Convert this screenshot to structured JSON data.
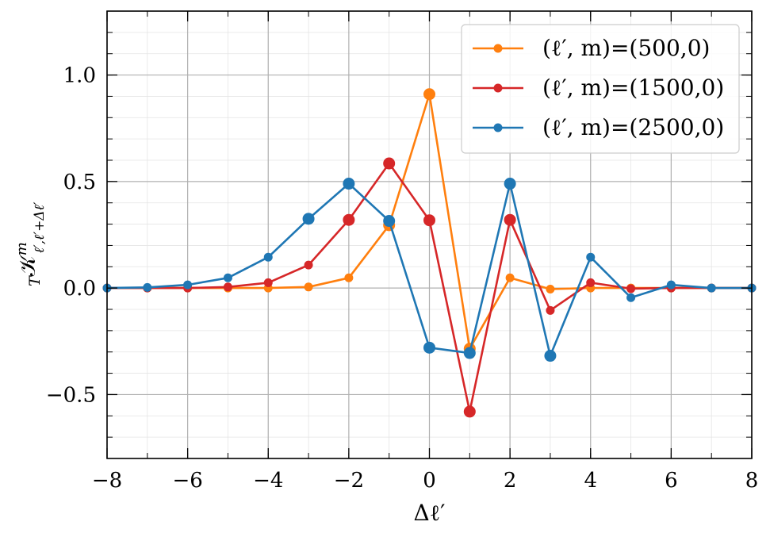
{
  "chart_data": {
    "type": "line",
    "xlabel": "Δℓ′",
    "ylabel_main": "𝒦",
    "ylabel_pre": "T",
    "ylabel_sup": "m",
    "ylabel_sub": "ℓ′,ℓ′+Δℓ′",
    "xlim": [
      -8,
      8
    ],
    "ylim": [
      -0.8,
      1.3
    ],
    "xticks": [
      -8,
      -6,
      -4,
      -2,
      0,
      2,
      4,
      6,
      8
    ],
    "xtick_labels": [
      "−8",
      "−6",
      "−4",
      "−2",
      "0",
      "2",
      "4",
      "6",
      "8"
    ],
    "yticks": [
      -0.5,
      0.0,
      0.5,
      1.0
    ],
    "ytick_labels": [
      "−0.5",
      "0.0",
      "0.5",
      "1.0"
    ],
    "grid": true,
    "legend_position": "top-right",
    "x": [
      -8,
      -7,
      -6,
      -5,
      -4,
      -3,
      -2,
      -1,
      0,
      1,
      2,
      3,
      4,
      5,
      6,
      7,
      8
    ],
    "series": [
      {
        "name": "(ℓ′, m)=(500,0)",
        "color": "#ff7f0e",
        "values": [
          0.0,
          0.0,
          0.0,
          0.0,
          0.0,
          0.005,
          0.048,
          0.295,
          0.91,
          -0.285,
          0.048,
          -0.005,
          0.0,
          0.0,
          0.0,
          0.0,
          0.0
        ]
      },
      {
        "name": "(ℓ′, m)=(1500,0)",
        "color": "#d62728",
        "values": [
          0.0,
          0.0,
          0.0,
          0.005,
          0.025,
          0.108,
          0.32,
          0.585,
          0.318,
          -0.58,
          0.32,
          -0.105,
          0.025,
          -0.003,
          0.0,
          0.0,
          0.0
        ]
      },
      {
        "name": "(ℓ′, m)=(2500,0)",
        "color": "#1f77b4",
        "values": [
          0.0,
          0.003,
          0.015,
          0.048,
          0.145,
          0.325,
          0.49,
          0.315,
          -0.28,
          -0.305,
          0.49,
          -0.318,
          0.145,
          -0.045,
          0.015,
          0.0,
          0.0
        ]
      }
    ]
  }
}
